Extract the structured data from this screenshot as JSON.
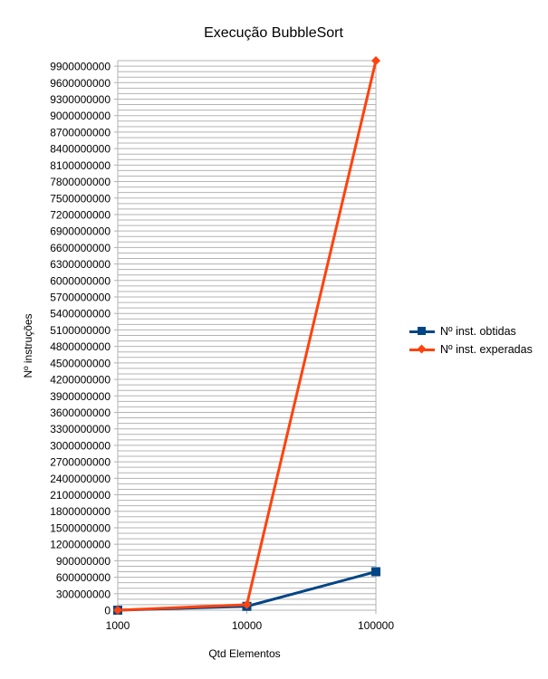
{
  "chart_data": {
    "type": "line",
    "title": "Execução BubbleSort",
    "xlabel": "Qtd Elementos",
    "ylabel": "Nº instruções",
    "categories": [
      "1000",
      "10000",
      "100000"
    ],
    "series": [
      {
        "name": "Nº inst. obtidas",
        "values": [
          700000,
          70000000,
          700000000
        ],
        "color": "#004586",
        "marker": "square"
      },
      {
        "name": "Nº inst. experadas",
        "values": [
          1000000,
          100000000,
          10000000000
        ],
        "color": "#ff420e",
        "marker": "diamond"
      }
    ],
    "ylim": [
      0,
      10000000000
    ],
    "ytick_step": 300000000,
    "yticks": [
      "0",
      "300000000",
      "600000000",
      "900000000",
      "1200000000",
      "1500000000",
      "1800000000",
      "2100000000",
      "2400000000",
      "2700000000",
      "3000000000",
      "3300000000",
      "3600000000",
      "3900000000",
      "4200000000",
      "4500000000",
      "4800000000",
      "5100000000",
      "5400000000",
      "5700000000",
      "6000000000",
      "6300000000",
      "6600000000",
      "6900000000",
      "7200000000",
      "7500000000",
      "7800000000",
      "8100000000",
      "8400000000",
      "8700000000",
      "9000000000",
      "9300000000",
      "9600000000",
      "9900000000"
    ],
    "grid": true,
    "grid_color": "#b3b3b3",
    "legend_position": "right"
  }
}
